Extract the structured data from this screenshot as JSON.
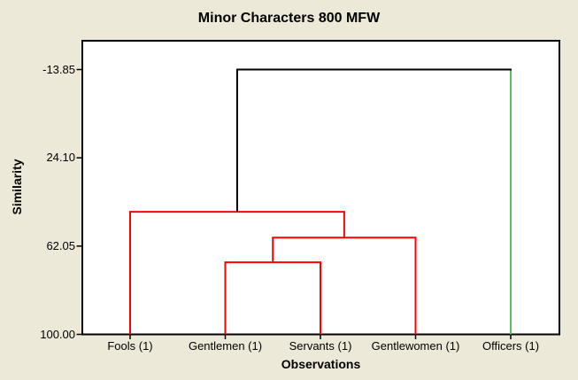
{
  "title": "Minor Characters 800 MFW",
  "colors": {
    "background": "#ECE9D8",
    "plot_background": "#FFFFFF",
    "frame": "#000000",
    "red_cluster": "#FF0000",
    "green_cluster": "#5CBE5C",
    "top_merge": "#000000",
    "text": "#000000"
  },
  "chart_data": {
    "type": "dendrogram",
    "title": "Minor Characters 800 MFW",
    "xlabel": "Observations",
    "ylabel": "Similarity",
    "y_axis": {
      "tick_values": [
        -13.85,
        24.1,
        62.05,
        100.0
      ],
      "tick_labels": [
        "-13.85",
        "24.10",
        "62.05",
        "100.00"
      ],
      "top_value": -13.85,
      "bottom_value": 100.0,
      "inverted": true,
      "grid": false
    },
    "leaves": [
      {
        "label": "Fools (1)",
        "color": "#FF0000"
      },
      {
        "label": "Gentlemen (1)",
        "color": "#FF0000"
      },
      {
        "label": "Servants (1)",
        "color": "#FF0000"
      },
      {
        "label": "Gentlewomen (1)",
        "color": "#FF0000"
      },
      {
        "label": "Officers (1)",
        "color": "#5CBE5C"
      }
    ],
    "merges": [
      {
        "id": "m1",
        "left": "L1",
        "right": "L2",
        "similarity": 69.0,
        "color": "#FF0000",
        "stem_color": "#FF0000"
      },
      {
        "id": "m2",
        "left": "m1",
        "right": "L3",
        "similarity": 58.4,
        "color": "#FF0000",
        "stem_color": "#FF0000"
      },
      {
        "id": "m3",
        "left": "L0",
        "right": "m2",
        "similarity": 47.3,
        "color": "#FF0000",
        "stem_color": "#000000"
      },
      {
        "id": "m4",
        "left": "m3",
        "right": "L4",
        "similarity": -13.85,
        "color": "#000000",
        "stem_color": "#000000"
      }
    ],
    "legend": null
  }
}
